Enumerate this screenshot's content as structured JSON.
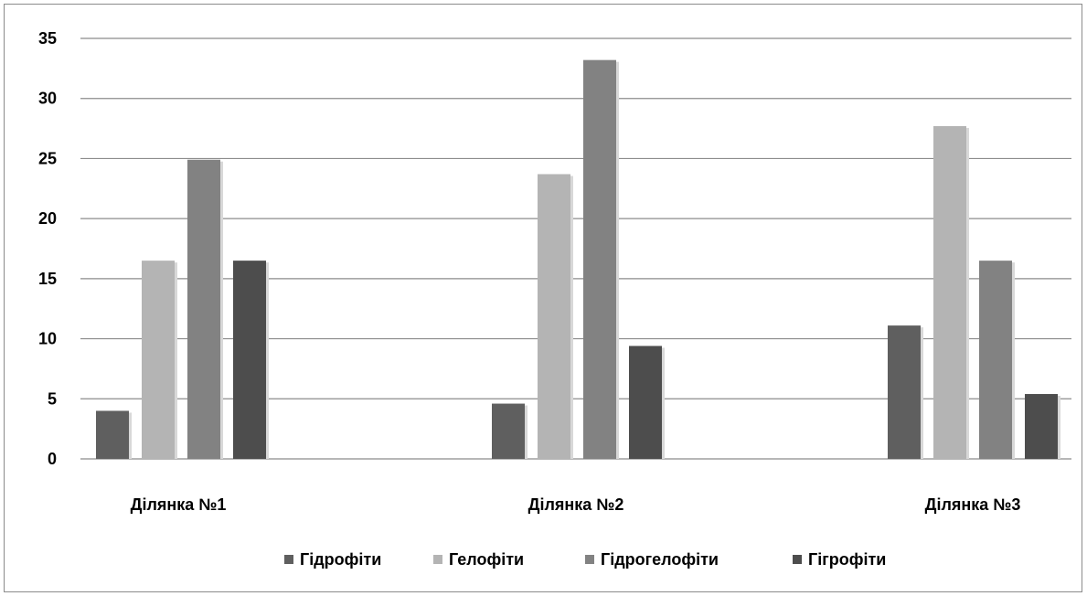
{
  "chart_data": {
    "type": "bar",
    "categories": [
      "Ділянка №1",
      "Ділянка №2",
      "Ділянка №3"
    ],
    "series": [
      {
        "name": "Гідрофіти",
        "color": "#5f5f5f",
        "values": [
          4.0,
          4.6,
          11.1
        ]
      },
      {
        "name": "Гелофіти",
        "color": "#b4b4b4",
        "values": [
          16.5,
          23.7,
          27.7
        ]
      },
      {
        "name": "Гідрогелофіти",
        "color": "#828282",
        "values": [
          24.9,
          33.2,
          16.5
        ]
      },
      {
        "name": "Гігрофіти",
        "color": "#4d4d4d",
        "values": [
          16.5,
          9.4,
          5.4
        ]
      }
    ],
    "ylim": [
      0,
      35
    ],
    "yticks": [
      0,
      5,
      10,
      15,
      20,
      25,
      30,
      35
    ],
    "grid": true,
    "legend_position": "bottom",
    "title": "",
    "xlabel": "",
    "ylabel": ""
  }
}
